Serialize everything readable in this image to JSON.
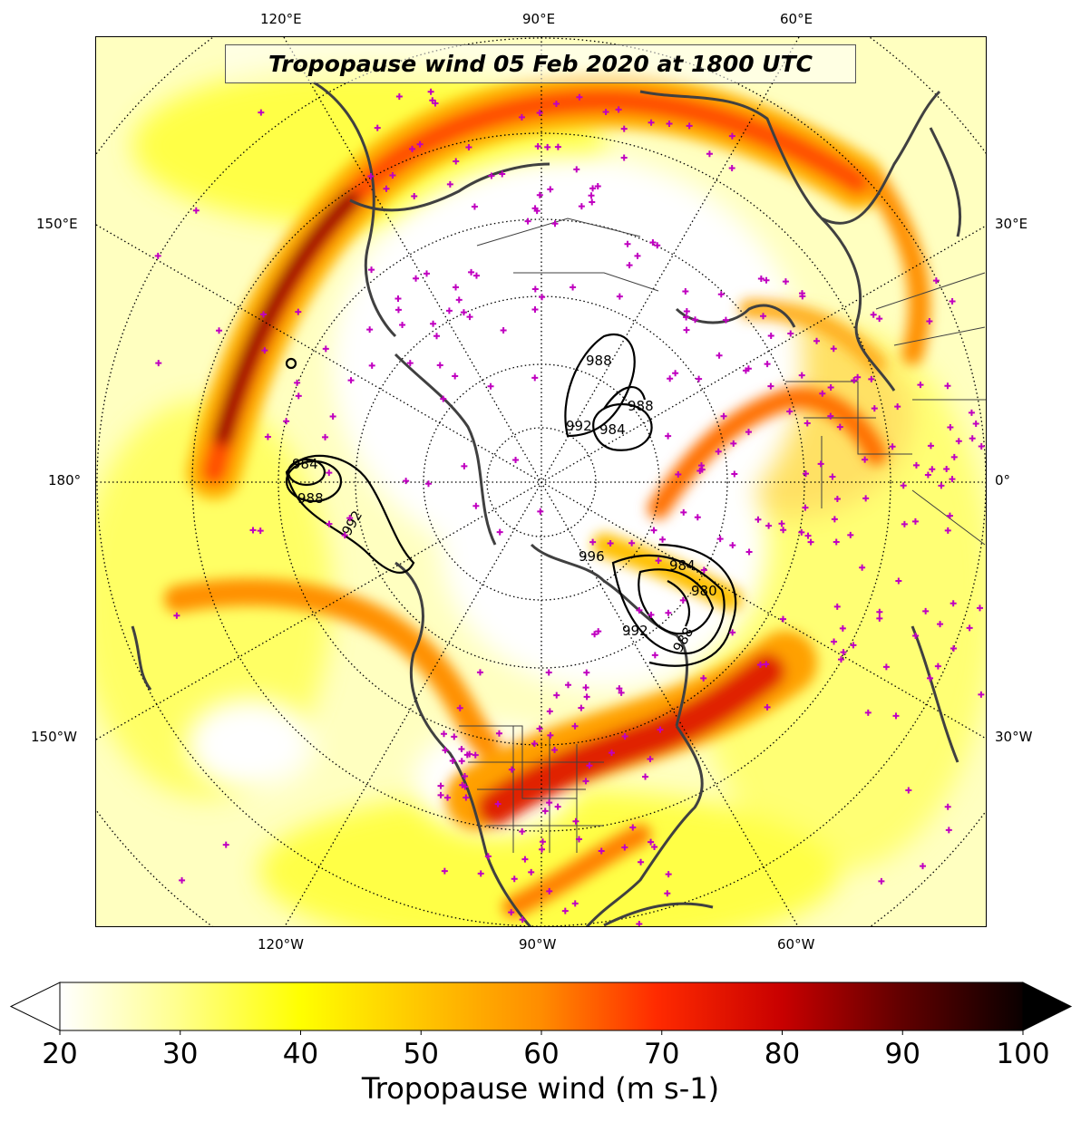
{
  "map": {
    "title": "Tropopause wind 05 Feb 2020 at 1800 UTC",
    "projection": "north-polar-stereographic",
    "field": "Tropopause wind speed",
    "contour_labels": [
      "984",
      "988",
      "992",
      "988",
      "984",
      "988",
      "992",
      "996",
      "980",
      "984",
      "988",
      "992"
    ],
    "station_marker_color": "#c000c0",
    "coastline_color": "#404040",
    "longitude_labels": {
      "top": [
        "120°E",
        "90°E",
        "60°E"
      ],
      "left": [
        "150°E",
        "180°",
        "150°W"
      ],
      "right": [
        "30°E",
        "0°",
        "30°W"
      ],
      "bottom": [
        "120°W",
        "90°W",
        "60°W"
      ]
    }
  },
  "colorbar": {
    "label": "Tropopause wind (m s-1)",
    "min": 20,
    "max": 100,
    "extend": "both",
    "ticks": [
      "20",
      "30",
      "40",
      "50",
      "60",
      "70",
      "80",
      "90",
      "100"
    ],
    "colormap": "hot_r",
    "colors": [
      "#ffffff",
      "#ffff80",
      "#ffff00",
      "#ffc000",
      "#ff8000",
      "#ff2000",
      "#c00000",
      "#600000",
      "#000000"
    ]
  }
}
